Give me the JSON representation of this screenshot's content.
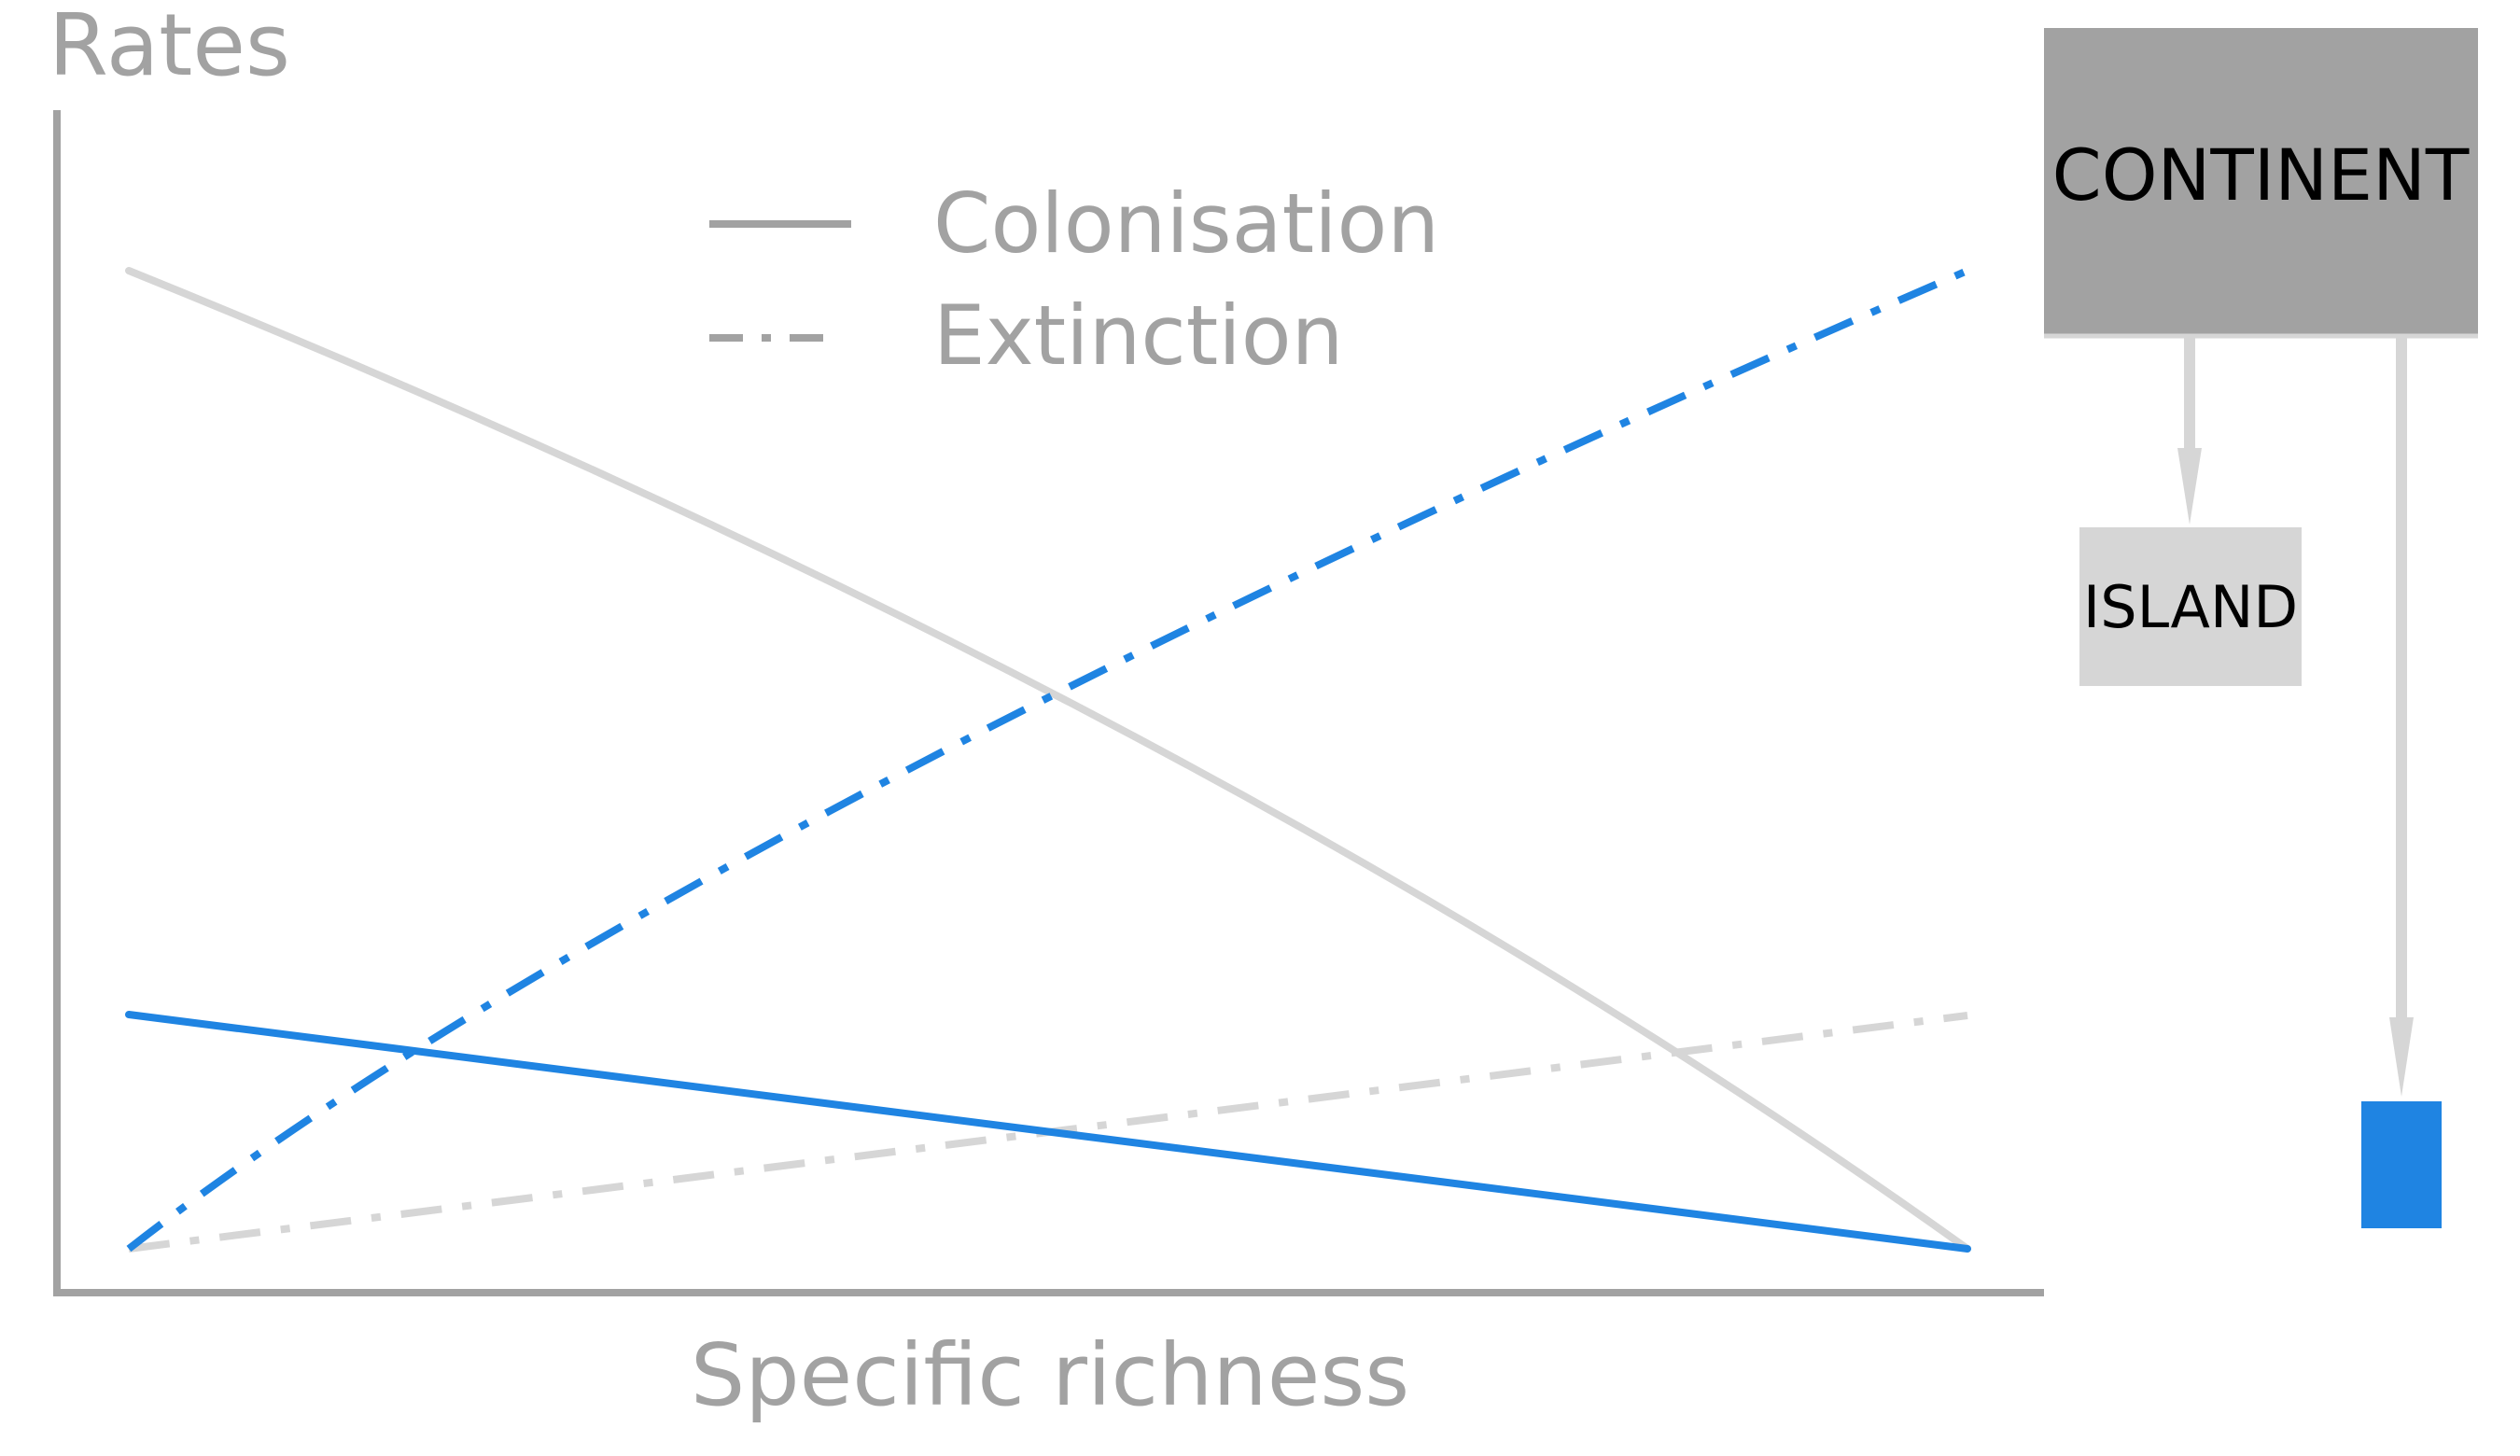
{
  "colors": {
    "gray_line": "#d6d6d6",
    "axis": "#a2a2a2",
    "blue": "#1f84e2",
    "continent_fill": "#a2a2a2",
    "island_fill": "#d6d6d6"
  },
  "axes": {
    "y_label": "Rates",
    "x_label": "Specific richness"
  },
  "legend": {
    "items": [
      {
        "label": "Colonisation",
        "style": "solid"
      },
      {
        "label": "Extinction",
        "style": "dash-dot"
      }
    ]
  },
  "boxes": {
    "continent": {
      "label": "CONTINENT"
    },
    "island": {
      "label": "ISLAND"
    },
    "small_island": {
      "label": ""
    }
  },
  "curves": [
    {
      "name": "island-colonisation",
      "color": "gray",
      "style": "solid",
      "start_level": "high",
      "end_level": "zero",
      "trend": "decreasing"
    },
    {
      "name": "island-extinction",
      "color": "gray",
      "style": "dash-dot",
      "start_level": "zero",
      "end_level": "low",
      "trend": "increasing"
    },
    {
      "name": "small-island-colonisation",
      "color": "blue",
      "style": "solid",
      "start_level": "low",
      "end_level": "zero",
      "trend": "decreasing"
    },
    {
      "name": "small-island-extinction",
      "color": "blue",
      "style": "dash-dot",
      "start_level": "zero",
      "end_level": "high",
      "trend": "increasing"
    }
  ]
}
